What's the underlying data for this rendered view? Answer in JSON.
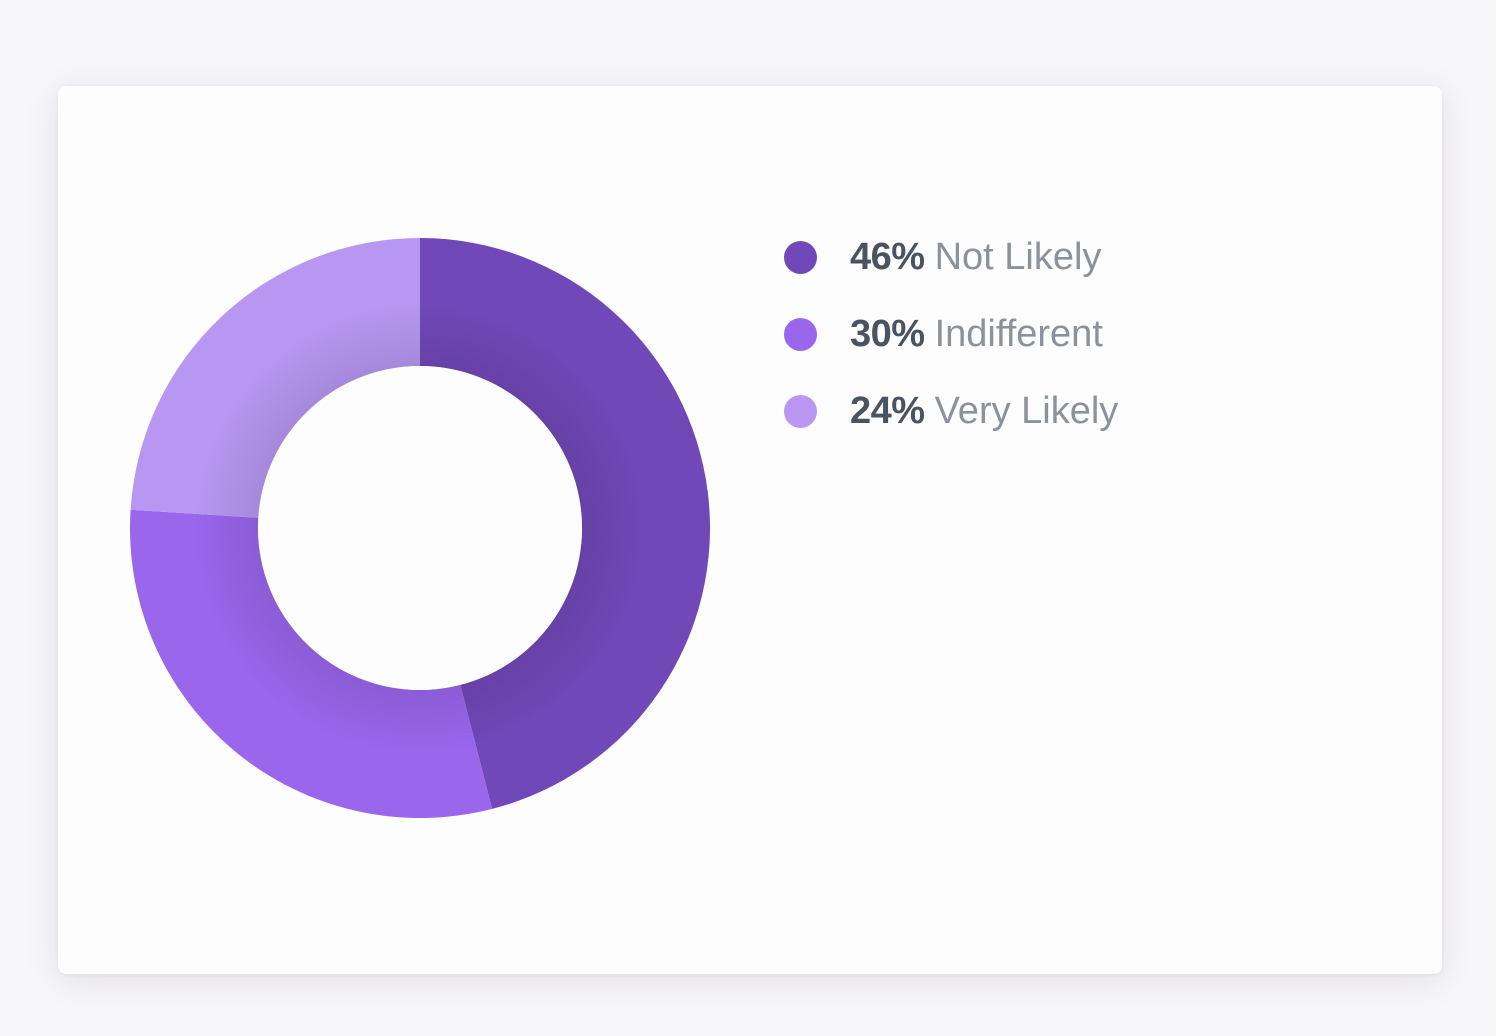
{
  "chart_data": {
    "type": "pie",
    "donut": true,
    "legend_position": "right",
    "slices": [
      {
        "label": "Not Likely",
        "value": 46,
        "value_text": "46%",
        "color": "#7148b8"
      },
      {
        "label": "Indifferent",
        "value": 30,
        "value_text": "30%",
        "color": "#9966ec"
      },
      {
        "label": "Very Likely",
        "value": 24,
        "value_text": "24%",
        "color": "#b797f2"
      }
    ]
  }
}
